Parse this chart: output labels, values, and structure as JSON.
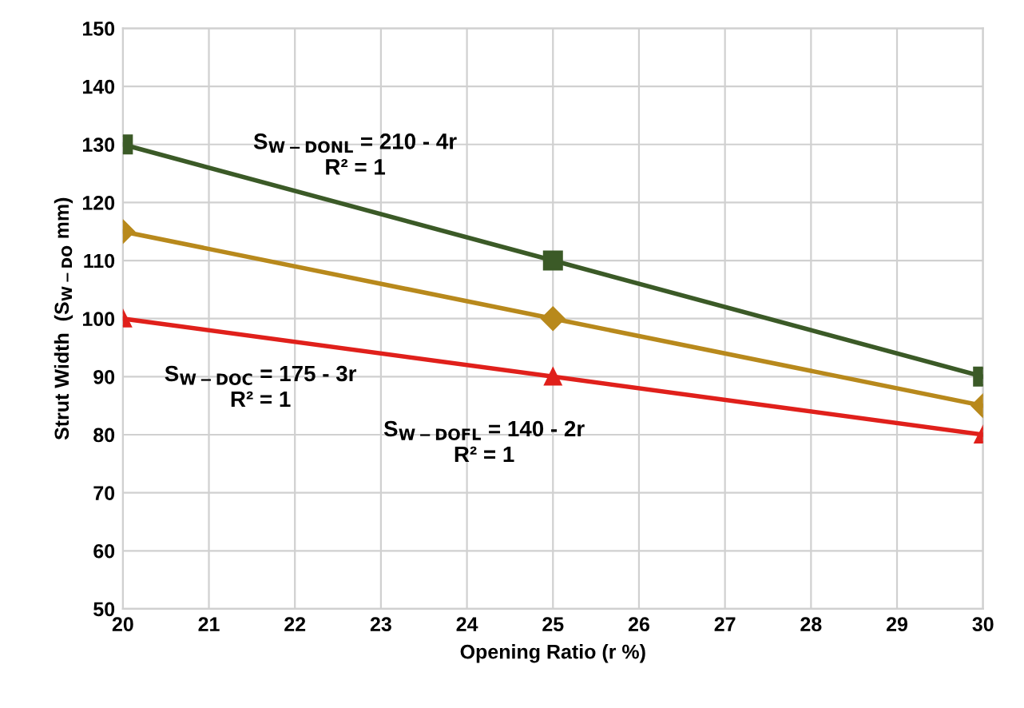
{
  "chart_data": {
    "type": "line",
    "xlabel": "Opening Ratio (r %)",
    "ylabel": "Strut Width  (S$_{W−DO}$ mm)",
    "x": [
      20,
      25,
      30
    ],
    "series": [
      {
        "color": "#3b5a27",
        "values": [
          130,
          110,
          90
        ],
        "marker": "square"
      },
      {
        "color": "#b8891c",
        "values": [
          115,
          100,
          85
        ],
        "marker": "diamond"
      },
      {
        "color": "#e0201b",
        "values": [
          100,
          90,
          80
        ],
        "marker": "triangle"
      }
    ],
    "annotations": [
      "S$_{W−DONL}$ = 210 - 4r\nR² = 1",
      "S$_{W−DOC}$ = 175 - 3r\nR² = 1",
      "S$_{W−DOFL}$ = 140 - 2r\nR² = 1"
    ],
    "xlim": [
      20,
      30
    ],
    "xticks": [
      20,
      21,
      22,
      23,
      24,
      25,
      26,
      27,
      28,
      29,
      30
    ],
    "ylim": [
      50,
      150
    ],
    "yticks": [
      50,
      60,
      70,
      80,
      90,
      100,
      110,
      120,
      130,
      140,
      150
    ],
    "grid": true,
    "legend": false,
    "line_style": "solid"
  }
}
